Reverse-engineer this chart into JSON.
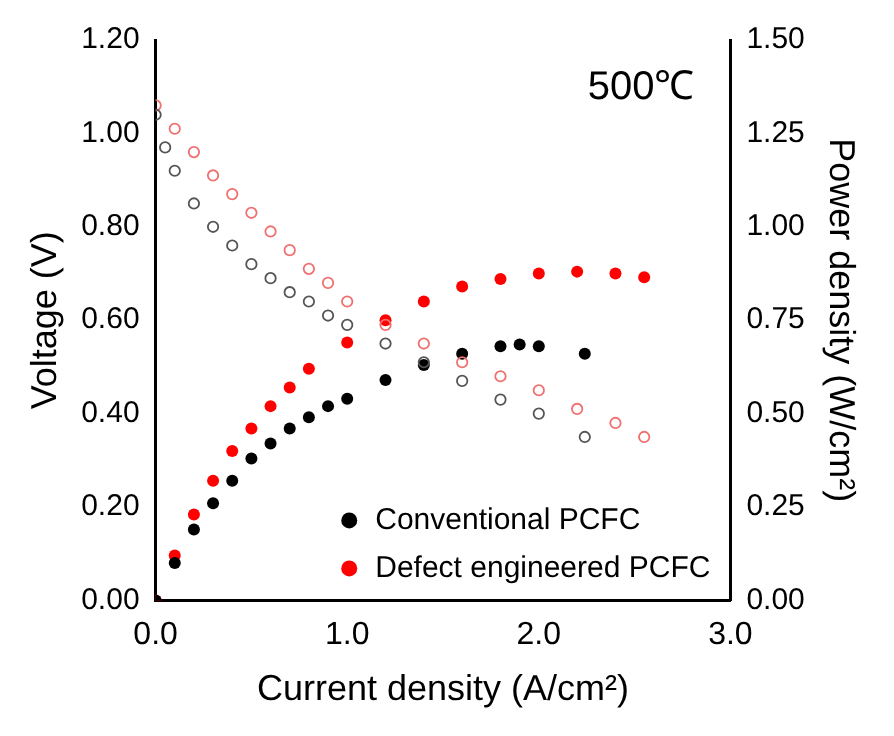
{
  "chart_data": {
    "type": "scatter",
    "xlabel": "Current density (A/cm²)",
    "ylabel": "Voltage (V)",
    "y2label": "Power density (W/cm²)",
    "annotations": [
      "500℃"
    ],
    "xlim": [
      0,
      3
    ],
    "xticks": [
      {
        "value": 0,
        "label": "0.0"
      },
      {
        "value": 1,
        "label": "1.0"
      },
      {
        "value": 2,
        "label": "2.0"
      },
      {
        "value": 3,
        "label": "3.0"
      }
    ],
    "ylim": [
      0,
      1.2
    ],
    "yticks": [
      {
        "value": 0,
        "label": "0.00"
      },
      {
        "value": 0.2,
        "label": "0.20"
      },
      {
        "value": 0.4,
        "label": "0.40"
      },
      {
        "value": 0.6,
        "label": "0.60"
      },
      {
        "value": 0.8,
        "label": "0.80"
      },
      {
        "value": 1,
        "label": "1.00"
      },
      {
        "value": 1.2,
        "label": "1.20"
      }
    ],
    "y2lim": [
      0,
      1.5
    ],
    "y2ticks": [
      {
        "value": 0,
        "label": "0.00"
      },
      {
        "value": 0.25,
        "label": "0.25"
      },
      {
        "value": 0.5,
        "label": "0.50"
      },
      {
        "value": 0.75,
        "label": "0.75"
      },
      {
        "value": 1,
        "label": "1.00"
      },
      {
        "value": 1.25,
        "label": "1.25"
      },
      {
        "value": 1.5,
        "label": "1.50"
      }
    ],
    "marker": "circle",
    "legend": "bottom right",
    "series": [
      {
        "color": "#555555",
        "axis": "y",
        "x": [
          0,
          0.05,
          0.1,
          0.2,
          0.3,
          0.4,
          0.5,
          0.6,
          0.7,
          0.8,
          0.9,
          1.0,
          1.2,
          1.4,
          1.6,
          1.8,
          2.0,
          2.24
        ],
        "values": [
          1.04,
          0.97,
          0.92,
          0.85,
          0.8,
          0.76,
          0.72,
          0.69,
          0.66,
          0.64,
          0.61,
          0.59,
          0.55,
          0.51,
          0.47,
          0.43,
          0.4,
          0.35
        ]
      },
      {
        "color": "#f07070",
        "axis": "y",
        "x": [
          0,
          0.1,
          0.2,
          0.3,
          0.4,
          0.5,
          0.6,
          0.7,
          0.8,
          0.9,
          1.0,
          1.2,
          1.4,
          1.6,
          1.8,
          2.0,
          2.2,
          2.4,
          2.55
        ],
        "values": [
          1.06,
          1.01,
          0.96,
          0.91,
          0.87,
          0.83,
          0.79,
          0.75,
          0.71,
          0.68,
          0.64,
          0.59,
          0.55,
          0.51,
          0.48,
          0.45,
          0.41,
          0.38,
          0.35
        ]
      },
      {
        "name": "Conventional PCFC",
        "color": "#000000",
        "axis": "y2",
        "x": [
          0,
          0.1,
          0.2,
          0.3,
          0.4,
          0.5,
          0.6,
          0.7,
          0.8,
          0.9,
          1.0,
          1.2,
          1.4,
          1.6,
          1.8,
          1.9,
          2.0,
          2.24
        ],
        "values": [
          0,
          0.1,
          0.19,
          0.26,
          0.32,
          0.38,
          0.42,
          0.46,
          0.49,
          0.52,
          0.54,
          0.59,
          0.63,
          0.66,
          0.68,
          0.685,
          0.68,
          0.66
        ]
      },
      {
        "name": "Defect engineered PCFC",
        "color": "#ff0000",
        "axis": "y2",
        "x": [
          0,
          0.1,
          0.2,
          0.3,
          0.4,
          0.5,
          0.6,
          0.7,
          0.8,
          1.0,
          1.2,
          1.4,
          1.6,
          1.8,
          2.0,
          2.2,
          2.4,
          2.55
        ],
        "values": [
          0,
          0.12,
          0.23,
          0.32,
          0.4,
          0.46,
          0.52,
          0.57,
          0.62,
          0.69,
          0.75,
          0.8,
          0.84,
          0.86,
          0.875,
          0.88,
          0.875,
          0.865
        ]
      }
    ]
  }
}
